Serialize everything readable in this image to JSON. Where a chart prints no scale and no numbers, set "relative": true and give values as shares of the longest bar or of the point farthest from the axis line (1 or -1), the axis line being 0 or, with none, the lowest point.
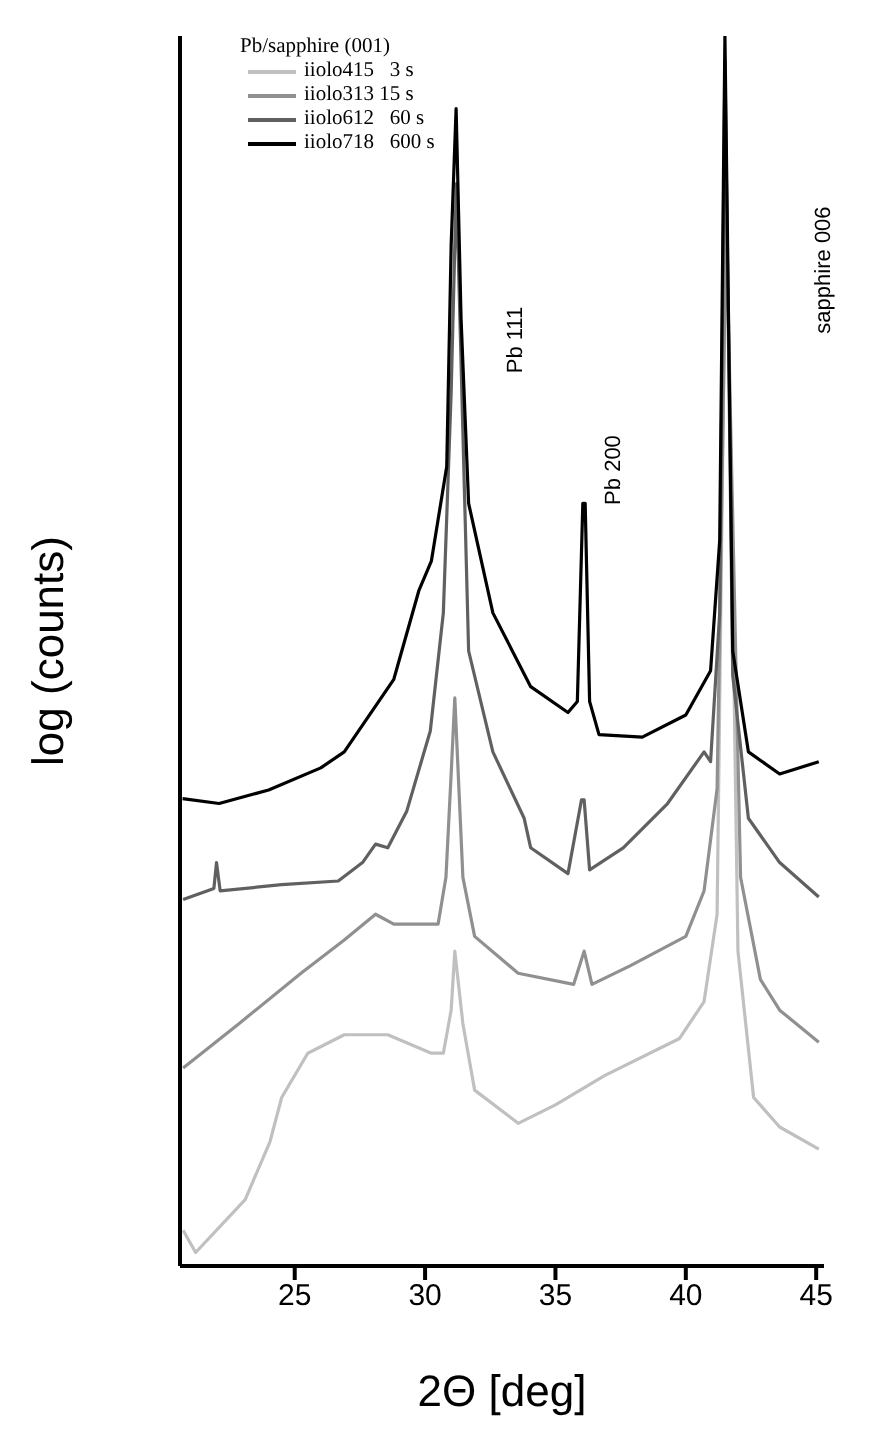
{
  "chart_data": {
    "type": "line",
    "relative": true,
    "xlabel": "2Θ [deg]",
    "ylabel": "log (counts)",
    "legend_title": "Pb/sapphire (001)",
    "legend": "top left",
    "grid": false,
    "marker": "none",
    "line_style": "solid",
    "xlim": [
      20.6,
      45.3
    ],
    "xticks": [
      25,
      30,
      35,
      40,
      45
    ],
    "annotations": [
      "Pb 111",
      "Pb 200",
      "sapphire 006"
    ],
    "series": [
      {
        "name": "iiolo415   3 s",
        "color": "#c0c0c0",
        "x": [
          20.72,
          21.2,
          23.1,
          24.05,
          24.5,
          25.5,
          26.9,
          28.57,
          30.24,
          30.7,
          31.0,
          31.14,
          31.45,
          31.9,
          33.57,
          35.0,
          36.9,
          39.76,
          40.7,
          41.2,
          41.55,
          42.0,
          42.6,
          43.6,
          45.1
        ],
        "values": [
          0.029,
          0.011,
          0.054,
          0.101,
          0.137,
          0.173,
          0.188,
          0.188,
          0.173,
          0.173,
          0.208,
          0.256,
          0.197,
          0.143,
          0.116,
          0.131,
          0.155,
          0.185,
          0.215,
          0.286,
          0.896,
          0.256,
          0.137,
          0.113,
          0.095
        ]
      },
      {
        "name": "iiolo313 15 s",
        "color": "#909090",
        "x": [
          20.72,
          22.86,
          25.24,
          26.9,
          28.1,
          28.8,
          30.5,
          30.8,
          31.0,
          31.14,
          31.45,
          31.9,
          33.57,
          35.7,
          36.1,
          36.4,
          37.86,
          40.0,
          40.7,
          41.2,
          41.55,
          42.1,
          42.86,
          43.6,
          45.1
        ],
        "values": [
          0.161,
          0.197,
          0.238,
          0.265,
          0.286,
          0.278,
          0.278,
          0.316,
          0.4,
          0.462,
          0.316,
          0.268,
          0.238,
          0.229,
          0.256,
          0.229,
          0.244,
          0.268,
          0.305,
          0.388,
          0.85,
          0.316,
          0.233,
          0.208,
          0.182
        ]
      },
      {
        "name": "iiolo612   60 s",
        "color": "#606060",
        "x": [
          20.72,
          21.9,
          22.0,
          22.14,
          24.5,
          26.67,
          27.6,
          28.1,
          28.57,
          29.3,
          30.2,
          30.7,
          31.0,
          31.2,
          31.67,
          32.6,
          33.8,
          34.05,
          35.48,
          36.0,
          36.1,
          36.31,
          37.6,
          39.3,
          40.7,
          40.95,
          41.3,
          41.5,
          41.8,
          42.4,
          43.6,
          45.1
        ],
        "values": [
          0.298,
          0.307,
          0.328,
          0.305,
          0.31,
          0.313,
          0.328,
          0.343,
          0.34,
          0.37,
          0.435,
          0.531,
          0.71,
          0.88,
          0.5,
          0.418,
          0.364,
          0.34,
          0.319,
          0.379,
          0.379,
          0.322,
          0.34,
          0.376,
          0.418,
          0.41,
          0.531,
          0.98,
          0.48,
          0.364,
          0.328,
          0.3
        ]
      },
      {
        "name": "iiolo718   600 s",
        "color": "#000000",
        "x": [
          20.7,
          22.1,
          24.0,
          26.0,
          26.9,
          28.8,
          29.76,
          30.24,
          30.83,
          31.0,
          31.19,
          31.38,
          31.67,
          32.6,
          34.05,
          35.48,
          35.84,
          36.05,
          36.14,
          36.31,
          36.67,
          38.33,
          40.0,
          40.95,
          41.3,
          41.5,
          41.8,
          42.4,
          43.6,
          45.1
        ],
        "values": [
          0.38,
          0.376,
          0.387,
          0.405,
          0.418,
          0.477,
          0.549,
          0.573,
          0.65,
          0.83,
          0.941,
          0.77,
          0.62,
          0.531,
          0.471,
          0.45,
          0.459,
          0.62,
          0.62,
          0.459,
          0.432,
          0.43,
          0.448,
          0.484,
          0.59,
          1.0,
          0.5,
          0.418,
          0.4,
          0.41
        ]
      }
    ]
  }
}
